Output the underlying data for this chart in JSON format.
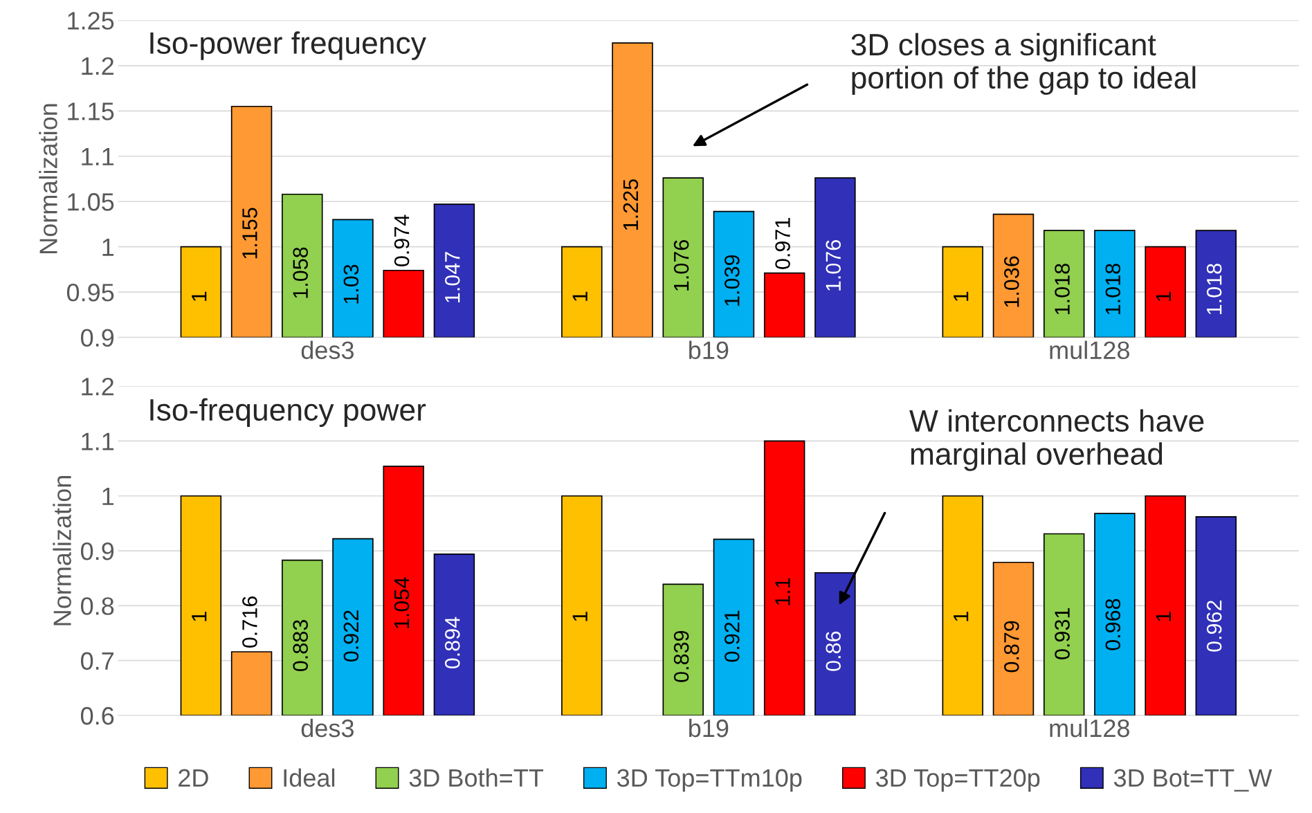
{
  "chart_data": [
    {
      "type": "bar",
      "title": "Iso-power frequency",
      "ylabel": "Normalization",
      "categories": [
        "des3",
        "b19",
        "mul128"
      ],
      "series": [
        {
          "color": "#ffc000",
          "values": [
            1,
            1,
            1
          ]
        },
        {
          "color": "#ff9933",
          "values": [
            1.155,
            1.225,
            1.036
          ]
        },
        {
          "color": "#92d050",
          "values": [
            1.058,
            1.076,
            1.018
          ]
        },
        {
          "color": "#00b0f0",
          "values": [
            1.03,
            1.039,
            1.018
          ]
        },
        {
          "color": "#ff0000",
          "values": [
            0.974,
            0.971,
            1
          ]
        },
        {
          "color": "#3030b8",
          "values": [
            1.047,
            1.076,
            1.018
          ]
        }
      ],
      "ylim": [
        0.9,
        1.25
      ],
      "yticks": [
        0.9,
        0.95,
        1,
        1.05,
        1.1,
        1.15,
        1.2,
        1.25
      ],
      "grid": "y",
      "data_labels": true,
      "annotations": [
        "3D closes a significant\nportion of the gap to ideal"
      ]
    },
    {
      "type": "bar",
      "title": "Iso-frequency power",
      "ylabel": "Normalization",
      "categories": [
        "des3",
        "b19",
        "mul128"
      ],
      "series": [
        {
          "name": "2D",
          "color": "#ffc000",
          "values": [
            1,
            1,
            1
          ]
        },
        {
          "name": "Ideal",
          "color": "#ff9933",
          "values": [
            0.716,
            null,
            0.879
          ]
        },
        {
          "name": "3D Both=TT",
          "color": "#92d050",
          "values": [
            0.883,
            0.839,
            0.931
          ]
        },
        {
          "name": "3D Top=TTm10p",
          "color": "#00b0f0",
          "values": [
            0.922,
            0.921,
            0.968
          ]
        },
        {
          "name": "3D Top=TT20p",
          "color": "#ff0000",
          "values": [
            1.054,
            1.1,
            1
          ]
        },
        {
          "name": "3D Bot=TT_W",
          "color": "#3030b8",
          "values": [
            0.894,
            0.86,
            0.962
          ]
        }
      ],
      "ylim": [
        0.6,
        1.2
      ],
      "yticks": [
        0.6,
        0.7,
        0.8,
        0.9,
        1,
        1.1,
        1.2
      ],
      "grid": "y",
      "data_labels": true,
      "legend": "bottom",
      "annotations": [
        "W interconnects have\nmarginal overhead"
      ]
    }
  ]
}
